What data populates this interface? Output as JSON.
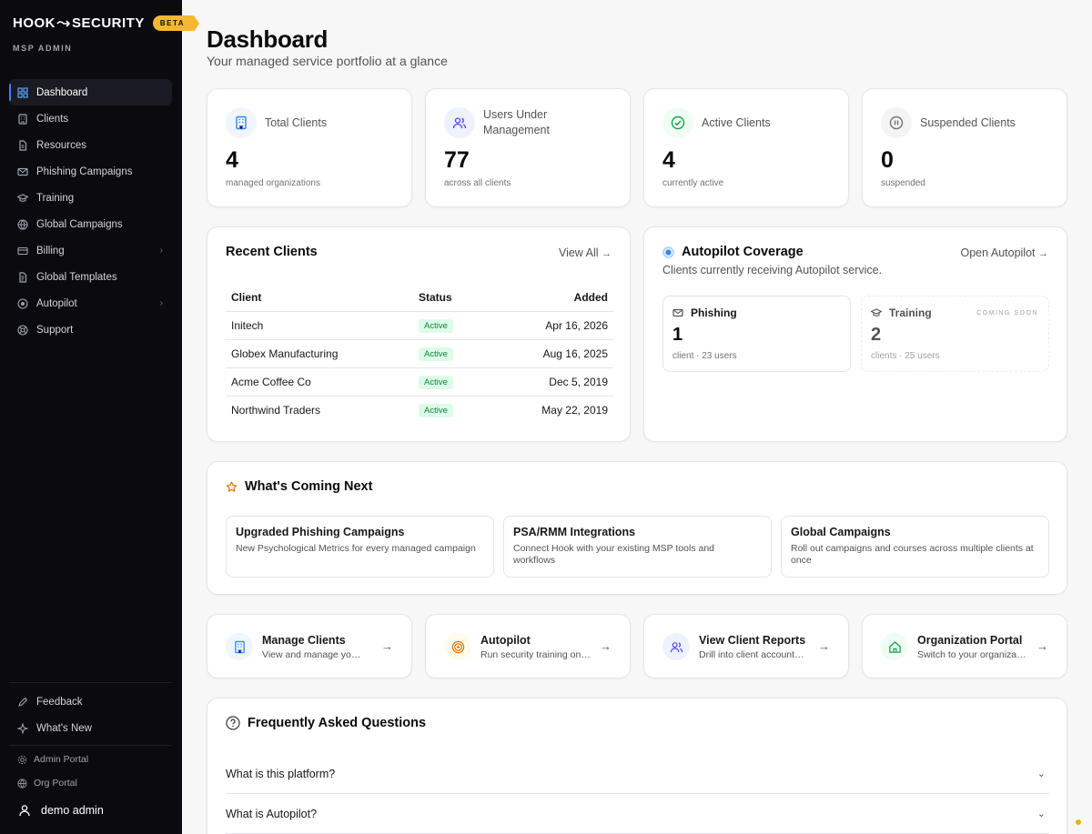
{
  "sidebar": {
    "brand_left": "HOOK",
    "brand_right": "SECURITY",
    "beta": "BETA",
    "subtitle": "MSP ADMIN",
    "items": [
      {
        "label": "Dashboard",
        "icon": "grid-icon",
        "active": true
      },
      {
        "label": "Clients",
        "icon": "building-icon"
      },
      {
        "label": "Resources",
        "icon": "document-icon"
      },
      {
        "label": "Phishing Campaigns",
        "icon": "mail-icon"
      },
      {
        "label": "Training",
        "icon": "graduation-cap-icon"
      },
      {
        "label": "Global Campaigns",
        "icon": "globe-icon"
      },
      {
        "label": "Billing",
        "icon": "credit-card-icon",
        "chevron": true
      },
      {
        "label": "Global Templates",
        "icon": "template-icon"
      },
      {
        "label": "Autopilot",
        "icon": "target-icon",
        "chevron": true
      },
      {
        "label": "Support",
        "icon": "lifebuoy-icon"
      }
    ],
    "bottom_items": [
      {
        "label": "Feedback",
        "icon": "pencil-icon"
      },
      {
        "label": "What's New",
        "icon": "sparkle-icon"
      }
    ],
    "portals": [
      {
        "label": "Admin Portal",
        "icon": "gear-icon"
      },
      {
        "label": "Org Portal",
        "icon": "globe-icon"
      }
    ],
    "user": "demo admin"
  },
  "header": {
    "title": "Dashboard",
    "subtitle": "Your managed service portfolio at a glance"
  },
  "stats": [
    {
      "label": "Total Clients",
      "value": "4",
      "desc": "managed organizations",
      "icon": "building-icon",
      "color": "#3b82f6",
      "bg": "#eff6ff"
    },
    {
      "label": "Users Under Management",
      "value": "77",
      "desc": "across all clients",
      "icon": "users-icon",
      "color": "#4f46e5",
      "bg": "#eef2ff"
    },
    {
      "label": "Active Clients",
      "value": "4",
      "desc": "currently active",
      "icon": "check-circle-icon",
      "color": "#16a34a",
      "bg": "#f0fdf4"
    },
    {
      "label": "Suspended Clients",
      "value": "0",
      "desc": "suspended",
      "icon": "pause-circle-icon",
      "color": "#71717a",
      "bg": "#f4f4f5"
    }
  ],
  "recent_clients": {
    "title": "Recent Clients",
    "view_all": "View All",
    "columns": [
      "Client",
      "Status",
      "Added"
    ],
    "rows": [
      {
        "client": "Initech",
        "status": "Active",
        "added": "Apr 16, 2026"
      },
      {
        "client": "Globex Manufacturing",
        "status": "Active",
        "added": "Aug 16, 2025"
      },
      {
        "client": "Acme Coffee Co",
        "status": "Active",
        "added": "Dec 5, 2019"
      },
      {
        "client": "Northwind Traders",
        "status": "Active",
        "added": "May 22, 2019"
      }
    ]
  },
  "autopilot": {
    "title": "Autopilot Coverage",
    "subtitle": "Clients currently receiving Autopilot service.",
    "open_link": "Open Autopilot",
    "phishing": {
      "label": "Phishing",
      "value": "1",
      "desc": "client · 23 users"
    },
    "training": {
      "label": "Training",
      "value": "2",
      "desc": "clients · 25 users",
      "badge": "COMING SOON"
    }
  },
  "coming_next": {
    "title": "What's Coming Next",
    "items": [
      {
        "title": "Upgraded Phishing Campaigns",
        "desc": "New Psychological Metrics for every managed campaign"
      },
      {
        "title": "PSA/RMM Integrations",
        "desc": "Connect Hook with your existing MSP tools and workflows"
      },
      {
        "title": "Global Campaigns",
        "desc": "Roll out campaigns and courses across multiple clients at once"
      }
    ]
  },
  "quick_links": [
    {
      "title": "Manage Clients",
      "desc": "View and manage your clients",
      "icon": "building-icon",
      "color": "#3b82f6",
      "bg": "#eff6ff"
    },
    {
      "title": "Autopilot",
      "desc": "Run security training on autopilot",
      "icon": "target-icon",
      "color": "#d97706",
      "bg": "#fffbeb"
    },
    {
      "title": "View Client Reports",
      "desc": "Drill into client accounts and reports",
      "icon": "users-icon",
      "color": "#4f46e5",
      "bg": "#eef2ff"
    },
    {
      "title": "Organization Portal",
      "desc": "Switch to your organization portal",
      "icon": "home-icon",
      "color": "#16a34a",
      "bg": "#f0fdf4"
    }
  ],
  "faq": {
    "title": "Frequently Asked Questions",
    "items": [
      {
        "q": "What is this platform?"
      },
      {
        "q": "What is Autopilot?"
      }
    ]
  }
}
